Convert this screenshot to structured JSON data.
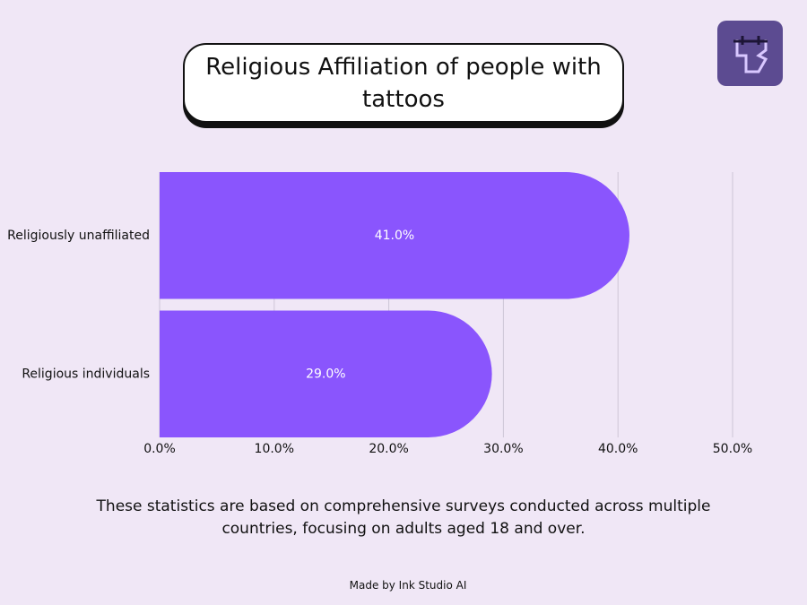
{
  "chart_data": {
    "type": "hbar",
    "title": "Religious Affiliation of people with tattoos",
    "categories": [
      "Religiously unaffiliated",
      "Religious individuals"
    ],
    "values": [
      41.0,
      29.0
    ],
    "value_labels": [
      "41.0%",
      "29.0%"
    ],
    "color": "#8a55fd",
    "xlim": [
      0,
      50
    ],
    "xticks": [
      {
        "value": 0,
        "label": "0.0%"
      },
      {
        "value": 10,
        "label": "10.0%"
      },
      {
        "value": 20,
        "label": "20.0%"
      },
      {
        "value": 30,
        "label": "30.0%"
      },
      {
        "value": 40,
        "label": "40.0%"
      },
      {
        "value": 50,
        "label": "50.0%"
      }
    ],
    "grid": true,
    "note": "These statistics are based on comprehensive surveys conducted across multiple countries, focusing on adults aged 18 and over.",
    "credit": "Made by Ink Studio AI"
  }
}
